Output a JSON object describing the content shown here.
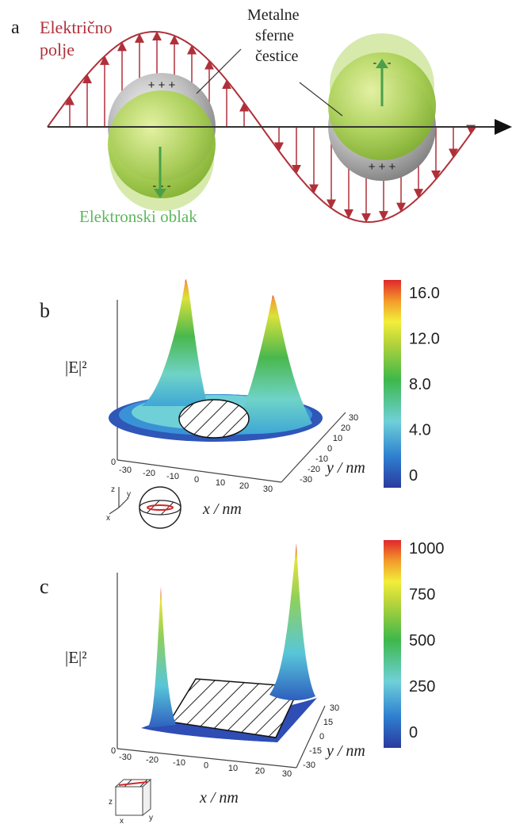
{
  "panel_a": {
    "letter": "a",
    "field_label_line1": "Električno",
    "field_label_line2": "polje",
    "particles_label_line1": "Metalne",
    "particles_label_line2": "sferne",
    "particles_label_line3": "čestice",
    "electron_cloud_label": "Elektronski oblak",
    "plus_charges": "+ + +",
    "minus_charges": "- - -",
    "colors": {
      "field": "#b0303a",
      "cloud": "#8cc63f",
      "cloud_label": "#5cb85c"
    }
  },
  "panel_b": {
    "letter": "b",
    "z_label": "|E|²",
    "x_axis_label": "x / nm",
    "y_axis_label": "y / nm",
    "x_ticks": [
      "-30",
      "-20",
      "-10",
      "0",
      "10",
      "20",
      "30"
    ],
    "y_ticks": [
      "30",
      "20",
      "10",
      "0",
      "-10",
      "-20",
      "-30"
    ],
    "z_tick": "0",
    "colorbar_ticks": [
      "16.0",
      "12.0",
      "8.0",
      "4.0",
      "0"
    ],
    "axes_icon": {
      "z": "z",
      "y": "y",
      "x": "x"
    }
  },
  "panel_c": {
    "letter": "c",
    "z_label": "|E|²",
    "x_axis_label": "x / nm",
    "y_axis_label": "y / nm",
    "x_ticks": [
      "-30",
      "-20",
      "-10",
      "0",
      "10",
      "20",
      "30"
    ],
    "y_ticks": [
      "30",
      "15",
      "0",
      "-15",
      "-30"
    ],
    "z_tick": "0",
    "colorbar_ticks": [
      "1000",
      "750",
      "500",
      "250",
      "0"
    ],
    "axes_icon": {
      "z": "z",
      "y": "y",
      "x": "x"
    }
  }
}
